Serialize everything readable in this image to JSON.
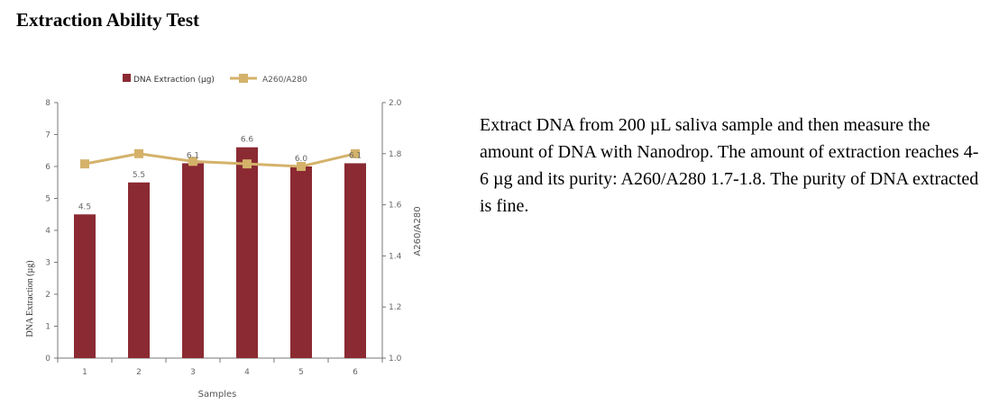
{
  "page": {
    "title": "Extraction Ability Test",
    "description": "Extract DNA from 200 µL saliva sample and then measure the amount of DNA with Nanodrop. The amount of extraction reaches 4-6 µg and its purity: A260/A280 1.7-1.8. The purity of DNA extracted is fine."
  },
  "chart_data": {
    "type": "bar",
    "categories": [
      "1",
      "2",
      "3",
      "4",
      "5",
      "6"
    ],
    "xlabel": "Samples",
    "ylabel": "DNA Extraction (µg)",
    "y2label": "A260/A280",
    "ylim": [
      0,
      8
    ],
    "y2lim": [
      1.0,
      2.0
    ],
    "yticks": [
      "0",
      "1",
      "2",
      "3",
      "4",
      "5",
      "6",
      "7",
      "8"
    ],
    "y2ticks": [
      "1.0",
      "1.2",
      "1.4",
      "1.6",
      "1.8",
      "2.0"
    ],
    "legend_position": "top",
    "series": [
      {
        "name": "DNA Extraction (µg)",
        "type": "bar",
        "axis": "left",
        "color": "#8b2a32",
        "values": [
          4.5,
          5.5,
          6.1,
          6.6,
          6.0,
          6.1
        ],
        "labels": [
          "4.5",
          "5.5",
          "6.1",
          "6.6",
          "6.0",
          "6.1"
        ]
      },
      {
        "name": "A260/A280",
        "type": "line",
        "axis": "right",
        "color": "#d4b26a",
        "values": [
          1.76,
          1.8,
          1.77,
          1.76,
          1.75,
          1.8
        ]
      }
    ]
  }
}
